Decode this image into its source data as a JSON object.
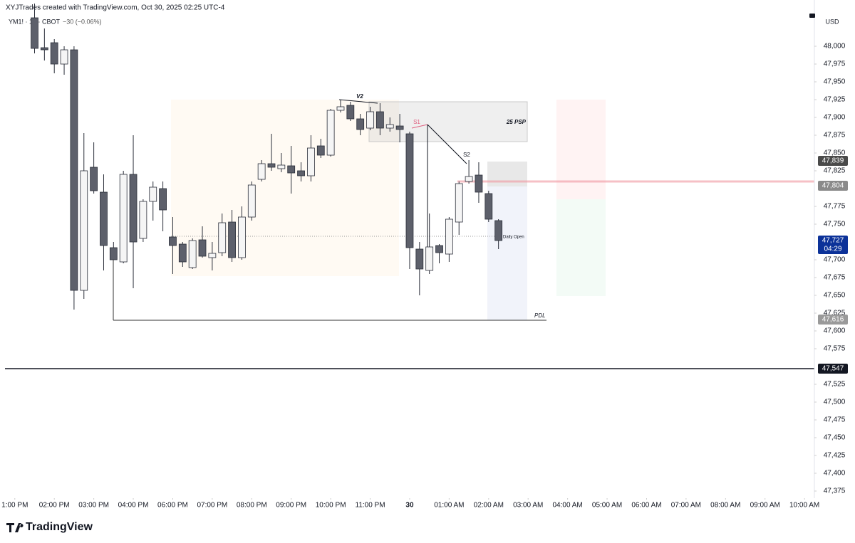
{
  "header": {
    "credit": "XYJTrades created with TradingView.com, Oct 30, 2025 02:25 UTC-4",
    "symbol": "YM1! · 15 · CBOT",
    "change": "−30 (−0.06%)",
    "currency": "USD",
    "brand": "TradingView"
  },
  "chart_data": {
    "type": "candlestick",
    "x": [
      2,
      3,
      4,
      5,
      6,
      7,
      8,
      9,
      10,
      11,
      12,
      13,
      14,
      15,
      16,
      17,
      18,
      19,
      20,
      21,
      22,
      23,
      24,
      25,
      26,
      27,
      28,
      29,
      30,
      31,
      32,
      33,
      34,
      35,
      36,
      37,
      38,
      39,
      40,
      41,
      42,
      43,
      44,
      45,
      46,
      47,
      48,
      49
    ],
    "open": [
      48040,
      47998,
      48005,
      47975,
      47995,
      47657,
      47830,
      47795,
      47717,
      47697,
      47820,
      47730,
      47782,
      47800,
      47732,
      47722,
      47689,
      47728,
      47703,
      47710,
      47753,
      47703,
      47760,
      47813,
      47835,
      47828,
      47832,
      47825,
      47818,
      47860,
      47847,
      47910,
      47917,
      47898,
      47885,
      47908,
      47885,
      47888,
      47877,
      47715,
      47685,
      47720,
      47708,
      47753,
      47810,
      47819,
      47793,
      47755
    ],
    "high": [
      48060,
      48025,
      48010,
      48000,
      48000,
      47878,
      47865,
      47820,
      47725,
      47825,
      47875,
      47785,
      47810,
      47810,
      47760,
      47725,
      47730,
      47747,
      47725,
      47765,
      47770,
      47775,
      47810,
      47840,
      47877,
      47850,
      47860,
      47837,
      47875,
      47870,
      47912,
      47925,
      47922,
      47905,
      47915,
      47920,
      47900,
      47905,
      47880,
      47725,
      47765,
      47722,
      47760,
      47810,
      47840,
      47837,
      47797,
      47757
    ],
    "low": [
      47990,
      47980,
      47962,
      47960,
      47630,
      47645,
      47793,
      47685,
      47700,
      47695,
      47660,
      47725,
      47755,
      47740,
      47680,
      47690,
      47687,
      47703,
      47685,
      47705,
      47697,
      47700,
      47755,
      47810,
      47825,
      47823,
      47793,
      47810,
      47810,
      47843,
      47845,
      47907,
      47895,
      47875,
      47882,
      47875,
      47880,
      47865,
      47687,
      47650,
      47680,
      47695,
      47697,
      47735,
      47807,
      47780,
      47753,
      47715
    ],
    "close": [
      47997,
      47995,
      47975,
      47995,
      47657,
      47825,
      47797,
      47720,
      47700,
      47820,
      47725,
      47782,
      47802,
      47770,
      47720,
      47697,
      47727,
      47705,
      47709,
      47752,
      47703,
      47760,
      47805,
      47835,
      47830,
      47833,
      47822,
      47818,
      47857,
      47847,
      47910,
      47915,
      47898,
      47883,
      47908,
      47885,
      47890,
      47883,
      47717,
      47687,
      47718,
      47710,
      47757,
      47807,
      47817,
      47795,
      47757,
      47727
    ],
    "up_color": "#f5f5f5",
    "down_color": "#5d606b",
    "wick_color": "#2a2e39",
    "xlim": [
      -1.5,
      81
    ],
    "xticks": [
      {
        "value": 0,
        "label": "1:00 PM"
      },
      {
        "value": 4,
        "label": "02:00 PM"
      },
      {
        "value": 8,
        "label": "03:00 PM"
      },
      {
        "value": 12,
        "label": "04:00 PM"
      },
      {
        "value": 16,
        "label": "06:00 PM"
      },
      {
        "value": 20,
        "label": "07:00 PM"
      },
      {
        "value": 24,
        "label": "08:00 PM"
      },
      {
        "value": 28,
        "label": "09:00 PM"
      },
      {
        "value": 32,
        "label": "10:00 PM"
      },
      {
        "value": 36,
        "label": "11:00 PM"
      },
      {
        "value": 40,
        "label": "30"
      },
      {
        "value": 44,
        "label": "01:00 AM"
      },
      {
        "value": 48,
        "label": "02:00 AM"
      },
      {
        "value": 52,
        "label": "03:00 AM"
      },
      {
        "value": 56,
        "label": "04:00 AM"
      },
      {
        "value": 60,
        "label": "05:00 AM"
      },
      {
        "value": 64,
        "label": "06:00 AM"
      },
      {
        "value": 68,
        "label": "07:00 AM"
      },
      {
        "value": 72,
        "label": "08:00 AM"
      },
      {
        "value": 76,
        "label": "09:00 AM"
      },
      {
        "value": 80,
        "label": "10:00 AM"
      }
    ],
    "ylim": [
      47360,
      48065
    ],
    "yticks": [
      {
        "value": 47375,
        "label": "47,375"
      },
      {
        "value": 47400,
        "label": "47,400"
      },
      {
        "value": 47425,
        "label": "47,425"
      },
      {
        "value": 47450,
        "label": "47,450"
      },
      {
        "value": 47475,
        "label": "47,475"
      },
      {
        "value": 47500,
        "label": "47,500"
      },
      {
        "value": 47525,
        "label": "47,525"
      },
      {
        "value": 47575,
        "label": "47,575"
      },
      {
        "value": 47600,
        "label": "47,600"
      },
      {
        "value": 47625,
        "label": "47,625"
      },
      {
        "value": 47650,
        "label": "47,650"
      },
      {
        "value": 47675,
        "label": "47,675"
      },
      {
        "value": 47700,
        "label": "47,700"
      },
      {
        "value": 47750,
        "label": "47,750"
      },
      {
        "value": 47775,
        "label": "47,775"
      },
      {
        "value": 47825,
        "label": "47,825"
      },
      {
        "value": 47850,
        "label": "47,850"
      },
      {
        "value": 47875,
        "label": "47,875"
      },
      {
        "value": 47900,
        "label": "47,900"
      },
      {
        "value": 47925,
        "label": "47,925"
      },
      {
        "value": 47950,
        "label": "47,950"
      },
      {
        "value": 47975,
        "label": "47,975"
      },
      {
        "value": 48000,
        "label": "48,000"
      }
    ],
    "price_tags": [
      {
        "value": 47839,
        "label": "47,839",
        "color": "#4a4a4a"
      },
      {
        "value": 47804,
        "label": "47,804",
        "color": "#8a8a8a"
      },
      {
        "value": 47727,
        "label": "47,727",
        "color": "#0c3299",
        "countdown": "04:29"
      },
      {
        "value": 47616,
        "label": "47,616",
        "color": "#9a9a9a"
      },
      {
        "value": 47547,
        "label": "47,547",
        "color": "#131722"
      }
    ],
    "annotations": [
      "V2",
      "S1",
      "S2",
      "25 PSP",
      "Daily Open",
      "PDL"
    ]
  }
}
